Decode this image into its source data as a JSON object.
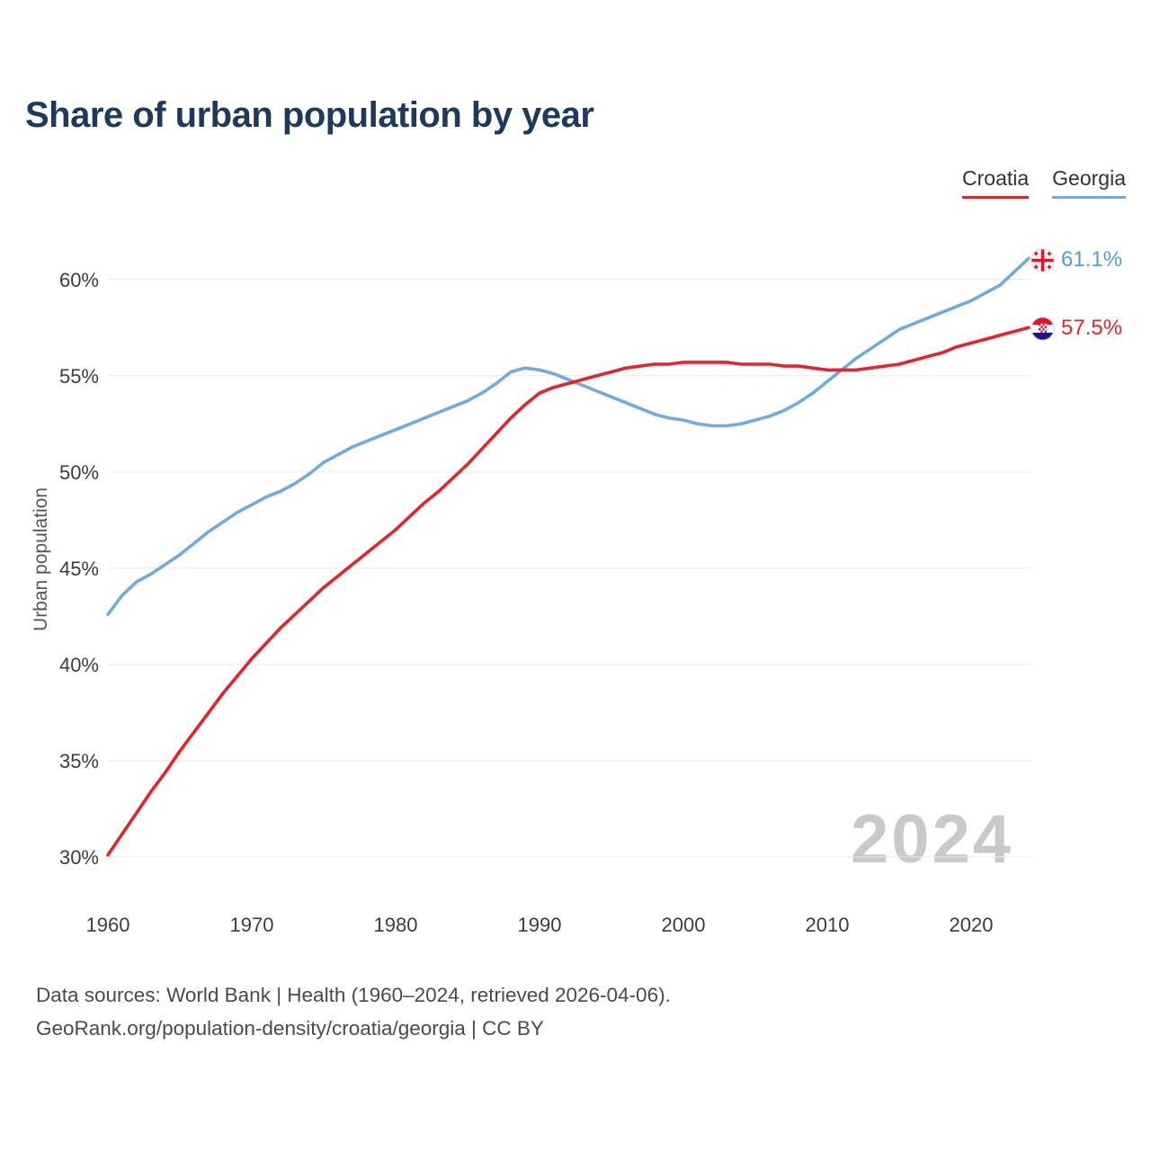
{
  "chart_data": {
    "type": "line",
    "title": "Share of urban population by year",
    "ylabel": "Urban population",
    "watermark": "2024",
    "grid": true,
    "legend_position": "top-right",
    "ylim": [
      30,
      62
    ],
    "xlim": [
      1960,
      2024
    ],
    "yticks": [
      30,
      35,
      40,
      45,
      50,
      55,
      60
    ],
    "ytick_suffix": "%",
    "xticks": [
      1960,
      1970,
      1980,
      1990,
      2000,
      2010,
      2020
    ],
    "x": [
      1960,
      1961,
      1962,
      1963,
      1964,
      1965,
      1966,
      1967,
      1968,
      1969,
      1970,
      1971,
      1972,
      1973,
      1974,
      1975,
      1976,
      1977,
      1978,
      1979,
      1980,
      1981,
      1982,
      1983,
      1984,
      1985,
      1986,
      1987,
      1988,
      1989,
      1990,
      1991,
      1992,
      1993,
      1994,
      1995,
      1996,
      1997,
      1998,
      1999,
      2000,
      2001,
      2002,
      2003,
      2004,
      2005,
      2006,
      2007,
      2008,
      2009,
      2010,
      2011,
      2012,
      2013,
      2014,
      2015,
      2016,
      2017,
      2018,
      2019,
      2020,
      2021,
      2022,
      2023,
      2024
    ],
    "series": [
      {
        "name": "Croatia",
        "color": "#e8222a",
        "end_label": "57.5%",
        "values": [
          30.1,
          31.2,
          32.3,
          33.4,
          34.4,
          35.5,
          36.5,
          37.5,
          38.5,
          39.4,
          40.3,
          41.1,
          41.9,
          42.6,
          43.3,
          44.0,
          44.6,
          45.2,
          45.8,
          46.4,
          47.0,
          47.7,
          48.4,
          49.0,
          49.7,
          50.4,
          51.2,
          52.0,
          52.8,
          53.5,
          54.1,
          54.4,
          54.6,
          54.8,
          55.0,
          55.2,
          55.4,
          55.5,
          55.6,
          55.6,
          55.7,
          55.7,
          55.7,
          55.7,
          55.6,
          55.6,
          55.6,
          55.5,
          55.5,
          55.4,
          55.3,
          55.3,
          55.3,
          55.4,
          55.5,
          55.6,
          55.8,
          56.0,
          56.2,
          56.5,
          56.7,
          56.9,
          57.1,
          57.3,
          57.5
        ]
      },
      {
        "name": "Georgia",
        "color": "#6fabde",
        "end_label": "61.1%",
        "values": [
          42.6,
          43.6,
          44.3,
          44.7,
          45.2,
          45.7,
          46.3,
          46.9,
          47.4,
          47.9,
          48.3,
          48.7,
          49.0,
          49.4,
          49.9,
          50.5,
          50.9,
          51.3,
          51.6,
          51.9,
          52.2,
          52.5,
          52.8,
          53.1,
          53.4,
          53.7,
          54.1,
          54.6,
          55.2,
          55.4,
          55.3,
          55.1,
          54.8,
          54.5,
          54.2,
          53.9,
          53.6,
          53.3,
          53.0,
          52.8,
          52.7,
          52.5,
          52.4,
          52.4,
          52.5,
          52.7,
          52.9,
          53.2,
          53.6,
          54.1,
          54.7,
          55.3,
          55.9,
          56.4,
          56.9,
          57.4,
          57.7,
          58.0,
          58.3,
          58.6,
          58.9,
          59.3,
          59.7,
          60.4,
          61.1
        ]
      }
    ]
  },
  "footer": {
    "line1": "Data sources: World Bank | Health (1960–2024, retrieved 2026-04-06).",
    "line2": "GeoRank.org/population-density/croatia/georgia | CC BY"
  }
}
